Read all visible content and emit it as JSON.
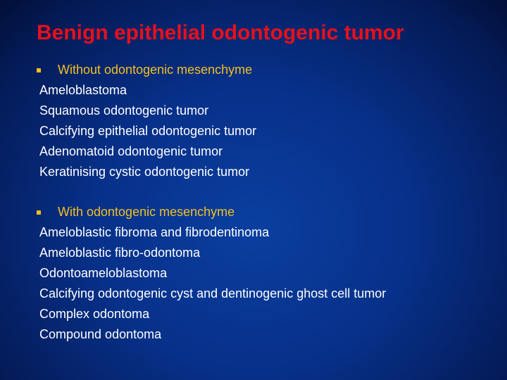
{
  "title": "Benign epithelial odontogenic tumor",
  "sections": [
    {
      "heading": "Without odontogenic mesenchyme",
      "items": [
        "Ameloblastoma",
        "Squamous odontogenic tumor",
        "Calcifying epithelial odontogenic tumor",
        "Adenomatoid odontogenic tumor",
        "Keratinising cystic odontogenic tumor"
      ]
    },
    {
      "heading": "With odontogenic mesenchyme",
      "items": [
        "Ameloblastic fibroma and fibrodentinoma",
        "Ameloblastic fibro-odontoma",
        "Odontoameloblastoma",
        "Calcifying odontogenic cyst and dentinogenic ghost cell tumor",
        "Complex odontoma",
        "Compound odontoma"
      ]
    }
  ]
}
